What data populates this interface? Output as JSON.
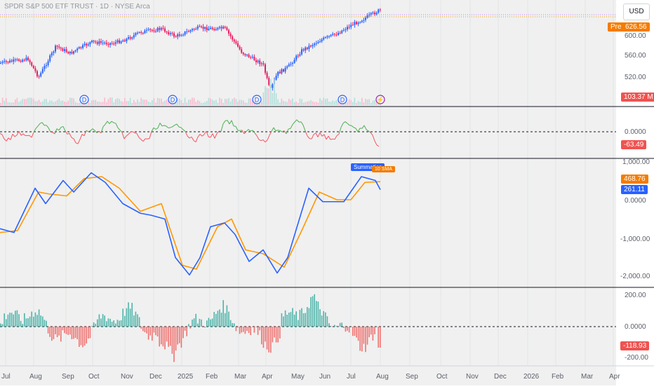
{
  "header": {
    "title": "SPDR S&P 500 ETF TRUST · 1D · NYSE Arca",
    "currency": "USD"
  },
  "price_pane": {
    "pre_label": "Pre",
    "last_price": "626.56",
    "axis_labels": [
      "600.00",
      "560.00",
      "520.00"
    ],
    "volume_label": "103.37 M",
    "event_markers": [
      "D",
      "D",
      "D",
      "D",
      "⚡"
    ]
  },
  "pane2": {
    "axis_labels": [
      "0.0000"
    ],
    "value_label": "-63.49",
    "color_up": "#4caf50",
    "color_down": "#f7525f"
  },
  "pane3": {
    "axis_labels": [
      "1,000.00",
      "0.0000",
      "-1,000.00",
      "-2,000.00"
    ],
    "summation_label": "Summation",
    "sma_label": "10 SMA",
    "sma_value": "468.76",
    "summation_value": "261.11",
    "colors": {
      "summation": "#2962ff",
      "sma": "#ff9800"
    }
  },
  "pane4": {
    "axis_labels": [
      "200.00",
      "0.0000",
      "-200.00"
    ],
    "value_label": "-118.93"
  },
  "time_axis": [
    "Jul",
    "Aug",
    "Sep",
    "Oct",
    "Nov",
    "Dec",
    "2025",
    "Feb",
    "Mar",
    "Apr",
    "May",
    "Jun",
    "Jul",
    "Aug",
    "Sep",
    "Oct",
    "Nov",
    "Dec",
    "2026",
    "Feb",
    "Mar",
    "Apr"
  ],
  "chart_data": [
    {
      "type": "candlestick",
      "title": "SPDR S&P 500 ETF TRUST · 1D · NYSE Arca",
      "x": [
        "Jul",
        "Aug",
        "Sep",
        "Oct",
        "Nov",
        "Dec",
        "2025",
        "Feb",
        "Mar",
        "Apr",
        "May",
        "Jun",
        "Jul",
        "Aug"
      ],
      "close_approx": [
        545,
        540,
        560,
        575,
        585,
        600,
        590,
        605,
        570,
        510,
        560,
        595,
        620,
        625
      ],
      "ylim": [
        490,
        640
      ],
      "last": 626.56
    },
    {
      "type": "line",
      "series": [
        {
          "name": "Summation",
          "x": [
            "Jul",
            "Aug",
            "Sep",
            "Oct",
            "Nov",
            "Dec",
            "2025",
            "Feb",
            "Mar",
            "Apr",
            "May",
            "Jun",
            "Jul",
            "Aug"
          ],
          "values": [
            -800,
            400,
            0,
            800,
            -200,
            -600,
            -1900,
            -600,
            -700,
            -1300,
            -1900,
            -400,
            200,
            261
          ]
        },
        {
          "name": "10 SMA",
          "x": [
            "Jul",
            "Aug",
            "Sep",
            "Oct",
            "Nov",
            "Dec",
            "2025",
            "Feb",
            "Mar",
            "Apr",
            "May",
            "Jun",
            "Jul",
            "Aug"
          ],
          "values": [
            -850,
            200,
            100,
            700,
            0,
            -300,
            -1750,
            -900,
            -500,
            -1200,
            -1800,
            -700,
            100,
            469
          ]
        }
      ],
      "ylim": [
        -2100,
        1100
      ]
    }
  ]
}
